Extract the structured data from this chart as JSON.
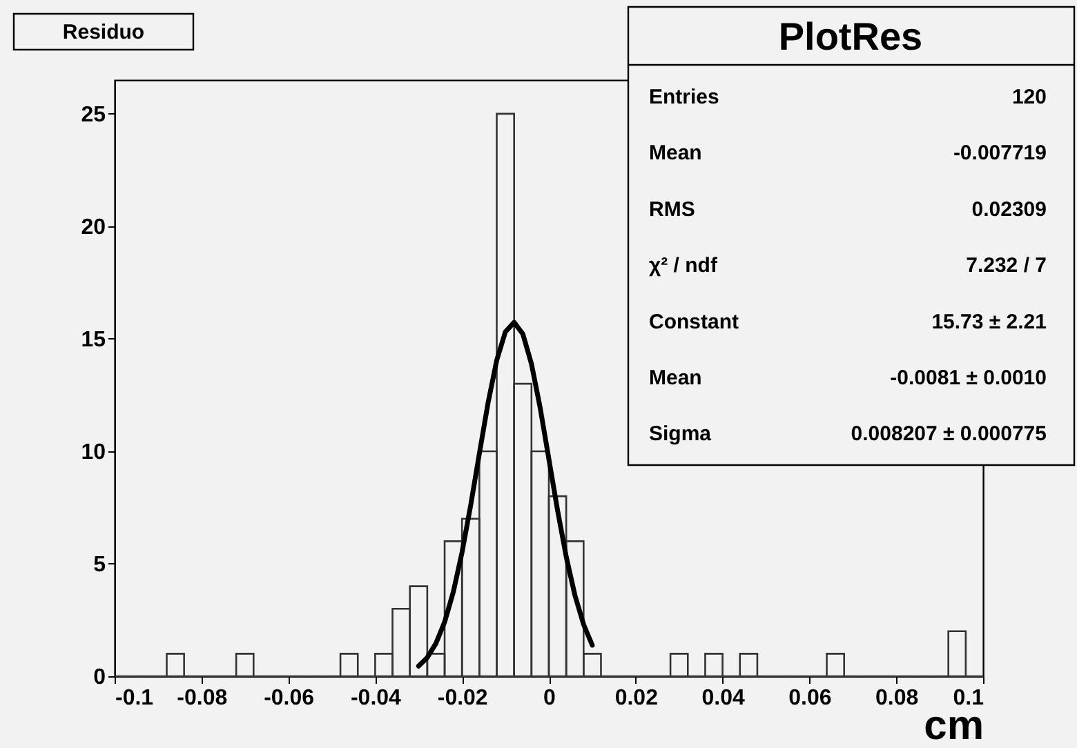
{
  "chart_data": {
    "type": "histogram",
    "title": "Residuo",
    "xlabel": "cm",
    "bins": [
      -0.1,
      -0.096,
      -0.092,
      -0.088,
      -0.084,
      -0.08,
      -0.076,
      -0.072,
      -0.068,
      -0.064,
      -0.06,
      -0.056,
      -0.052,
      -0.048,
      -0.044,
      -0.04,
      -0.036,
      -0.032,
      -0.028,
      -0.024,
      -0.02,
      -0.016,
      -0.012,
      -0.008,
      -0.004,
      0,
      0.004,
      0.008,
      0.012,
      0.016,
      0.02,
      0.024,
      0.028,
      0.032,
      0.036,
      0.04,
      0.044,
      0.048,
      0.052,
      0.056,
      0.06,
      0.064,
      0.068,
      0.072,
      0.076,
      0.08,
      0.084,
      0.088,
      0.092,
      0.096,
      0.1
    ],
    "values": [
      0,
      0,
      0,
      1,
      0,
      0,
      0,
      1,
      0,
      0,
      0,
      0,
      0,
      1,
      0,
      1,
      3,
      4,
      1,
      6,
      7,
      10,
      25,
      13,
      10,
      8,
      6,
      1,
      0,
      0,
      0,
      0,
      1,
      0,
      1,
      0,
      1,
      0,
      0,
      0,
      0,
      1,
      0,
      0,
      0,
      0,
      0,
      0,
      2,
      0
    ],
    "color": "#333333",
    "series": [
      {
        "type": "line",
        "color": "#000000",
        "x": [
          -0.03,
          -0.028,
          -0.026,
          -0.024,
          -0.022,
          -0.02,
          -0.018,
          -0.016,
          -0.014,
          -0.012,
          -0.01,
          -0.008,
          -0.006,
          -0.004,
          -0.002,
          0,
          0.002,
          0.004,
          0.006,
          0.008,
          0.01
        ],
        "values": [
          0.45,
          0.83,
          1.46,
          2.41,
          3.75,
          5.5,
          7.6,
          9.9,
          12.15,
          14.05,
          15.31,
          15.73,
          15.22,
          13.88,
          11.93,
          9.66,
          7.38,
          5.31,
          3.6,
          2.3,
          1.38
        ]
      }
    ],
    "xlim": [
      -0.1,
      0.1
    ],
    "xticks": [
      -0.1,
      -0.08,
      -0.06,
      -0.04,
      -0.02,
      0,
      0.02,
      0.04,
      0.06,
      0.08,
      0.1
    ],
    "ylim": [
      0,
      26.5
    ],
    "yticks": [
      0,
      5,
      10,
      15,
      20,
      25
    ],
    "grid": false,
    "annotations": [
      "PlotRes",
      "Entries",
      "120",
      "Mean",
      "-0.007719",
      "RMS",
      "0.02309",
      "χ² / ndf",
      "7.232 / 7",
      "Constant",
      "15.73 ± 2.21",
      "Mean",
      "-0.0081 ± 0.0010",
      "Sigma",
      "0.008207 ± 0.000775"
    ]
  }
}
